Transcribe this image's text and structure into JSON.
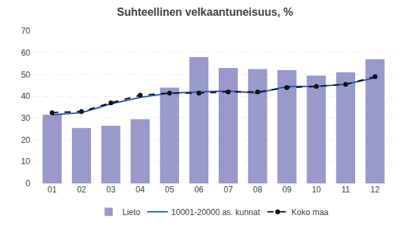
{
  "chart_data": {
    "type": "bar",
    "title": "Suhteellinen velkaantuneisuus, %",
    "categories": [
      "01",
      "02",
      "03",
      "04",
      "05",
      "06",
      "07",
      "08",
      "09",
      "10",
      "11",
      "12"
    ],
    "series": [
      {
        "name": "Lieto",
        "type": "bar",
        "color": "#9999cc",
        "values": [
          31.5,
          25.5,
          26.5,
          29.5,
          44.0,
          58.0,
          53.0,
          52.5,
          52.0,
          49.5,
          51.0,
          57.0
        ]
      },
      {
        "name": "10001-20000 as. kunnat",
        "type": "line",
        "color": "#2255aa",
        "line_style": "solid",
        "values": [
          31.5,
          32.5,
          36.5,
          39.5,
          41.5,
          42.0,
          42.5,
          41.5,
          44.5,
          44.5,
          45.5,
          48.5
        ]
      },
      {
        "name": "Koko maa",
        "type": "line",
        "color": "#111111",
        "line_style": "dashed",
        "marker": "circle",
        "values": [
          32.5,
          33.0,
          37.0,
          40.5,
          41.5,
          41.5,
          42.0,
          42.0,
          44.0,
          44.5,
          45.5,
          49.0
        ]
      }
    ],
    "ylim": [
      0,
      70
    ],
    "yticks": [
      0,
      10,
      20,
      30,
      40,
      50,
      60,
      70
    ],
    "grid": true,
    "legend": "bottom"
  }
}
